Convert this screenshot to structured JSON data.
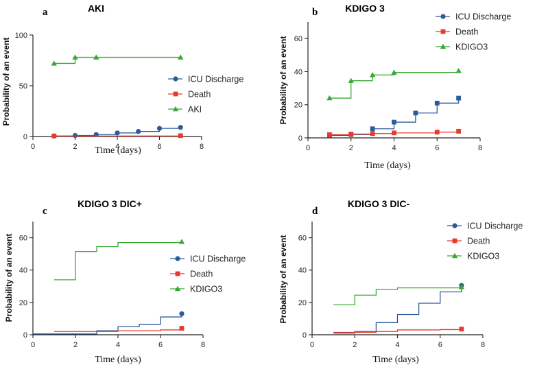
{
  "colors": {
    "icu": "#2d5b9a",
    "death": "#e8392c",
    "kdigo": "#39a935",
    "axis": "#222222"
  },
  "chart_data": [
    {
      "type": "line",
      "step": true,
      "label": "a",
      "title": "AKI",
      "xlabel": "Time (days)",
      "ylabel": "Probability of an event",
      "xlim": [
        0,
        8
      ],
      "ylim": [
        0,
        100
      ],
      "xticks": [
        0,
        2,
        4,
        6,
        8
      ],
      "yticks": [
        0,
        50,
        100
      ],
      "legend": "center-right",
      "series": [
        {
          "name": "ICU Discharge",
          "key": "icu",
          "marker": "circle",
          "x": [
            1,
            2,
            3,
            4,
            5,
            6,
            7
          ],
          "y": [
            0.5,
            1,
            2,
            3.5,
            5,
            8,
            9
          ]
        },
        {
          "name": "Death",
          "key": "death",
          "marker": "square",
          "x": [
            1,
            7
          ],
          "y": [
            0.5,
            0.8
          ]
        },
        {
          "name": "AKI",
          "key": "kdigo",
          "marker": "triangle",
          "x": [
            1,
            2,
            3,
            7
          ],
          "y": [
            72,
            78,
            78,
            78
          ]
        }
      ]
    },
    {
      "type": "line",
      "step": true,
      "label": "b",
      "title": "KDIGO 3",
      "xlabel": "Time (days)",
      "ylabel": "Probability of an event",
      "xlim": [
        0,
        8
      ],
      "ylim": [
        0,
        70
      ],
      "xticks": [
        0,
        2,
        4,
        6,
        8
      ],
      "yticks": [
        0,
        20,
        40,
        60
      ],
      "legend": "top-right",
      "series": [
        {
          "name": "ICU Discharge",
          "key": "icu",
          "marker": "square",
          "x": [
            1,
            2,
            3,
            4,
            5,
            6,
            7
          ],
          "y": [
            1.5,
            2,
            5.5,
            9.5,
            15,
            21,
            24
          ]
        },
        {
          "name": "Death",
          "key": "death",
          "marker": "square",
          "x": [
            1,
            2,
            3,
            4,
            6,
            7
          ],
          "y": [
            2,
            2.3,
            2.6,
            3,
            3.5,
            4
          ]
        },
        {
          "name": "KDIGO3",
          "key": "kdigo",
          "marker": "triangle",
          "x": [
            1,
            2,
            3,
            4,
            7
          ],
          "y": [
            24,
            34.5,
            38,
            39.5,
            40.5
          ]
        }
      ]
    },
    {
      "type": "line",
      "step": true,
      "label": "c",
      "title": "KDIGO 3 DIC+",
      "xlabel": "Time (days)",
      "ylabel": "Probability of an event",
      "xlim": [
        0,
        8
      ],
      "ylim": [
        0,
        70
      ],
      "xticks": [
        0,
        2,
        4,
        6,
        8
      ],
      "yticks": [
        0,
        20,
        40,
        60
      ],
      "legend": "center-right",
      "series": [
        {
          "name": "ICU Discharge",
          "key": "icu",
          "marker": "circle",
          "x": [
            0,
            3,
            4,
            5,
            6,
            7
          ],
          "y": [
            0.5,
            2.5,
            5,
            6.5,
            11,
            13
          ]
        },
        {
          "name": "Death",
          "key": "death",
          "marker": "square",
          "x": [
            1,
            4,
            6,
            7
          ],
          "y": [
            2,
            2.5,
            3,
            4
          ]
        },
        {
          "name": "KDIGO3",
          "key": "kdigo",
          "marker": "triangle",
          "x": [
            1,
            2,
            3,
            4,
            7
          ],
          "y": [
            34,
            51.5,
            54.5,
            57,
            57.5
          ]
        }
      ]
    },
    {
      "type": "line",
      "step": true,
      "label": "d",
      "title": "KDIGO 3 DIC-",
      "xlabel": "Time (days)",
      "ylabel": "Probability of an event",
      "xlim": [
        0,
        8
      ],
      "ylim": [
        0,
        70
      ],
      "xticks": [
        0,
        2,
        4,
        6,
        8
      ],
      "yticks": [
        0,
        20,
        40,
        60
      ],
      "legend": "top-right",
      "series": [
        {
          "name": "ICU Discharge",
          "key": "icu",
          "marker": "circle",
          "x": [
            1,
            2,
            3,
            4,
            5,
            6,
            7
          ],
          "y": [
            1,
            2,
            7.5,
            12.5,
            19.5,
            26.5,
            30.5
          ]
        },
        {
          "name": "Death",
          "key": "death",
          "marker": "square",
          "x": [
            1,
            3,
            4,
            6,
            7
          ],
          "y": [
            1.5,
            2,
            3,
            3.2,
            3.5
          ]
        },
        {
          "name": "KDIGO3",
          "key": "kdigo",
          "marker": "triangle",
          "x": [
            1,
            2,
            3,
            4,
            7
          ],
          "y": [
            18.5,
            24.5,
            28,
            29,
            29.5
          ]
        }
      ]
    }
  ]
}
